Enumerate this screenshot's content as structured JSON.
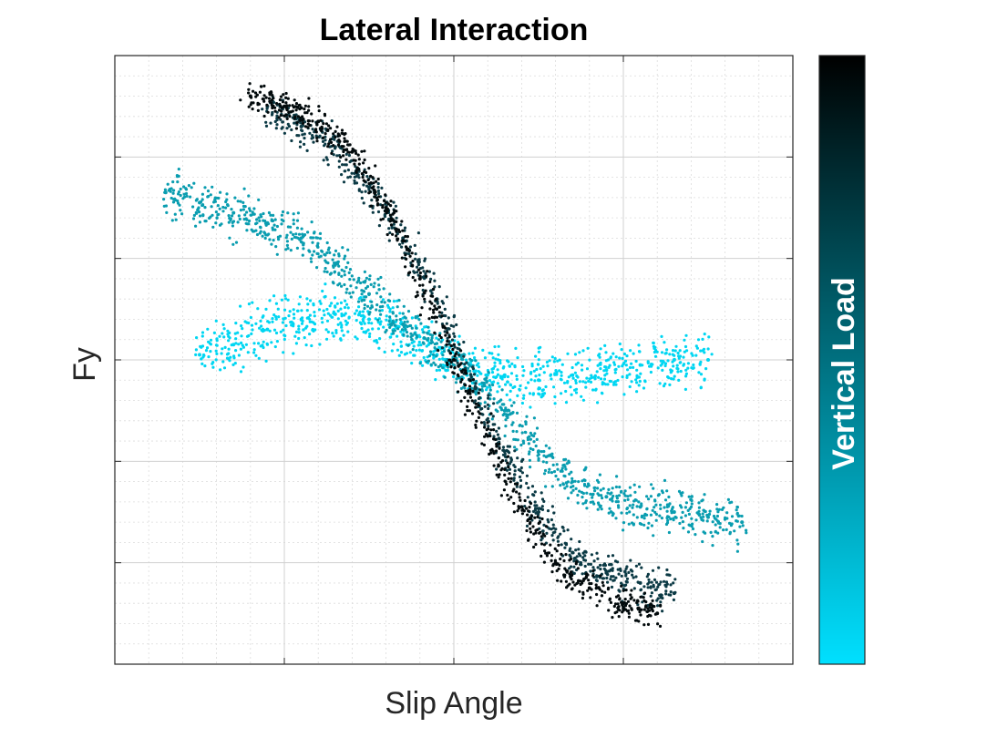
{
  "chart_data": {
    "type": "scatter",
    "title": "Lateral Interaction",
    "xlabel": "Slip Angle",
    "ylabel": "Fy",
    "xlim": [
      -10,
      10
    ],
    "ylim": [
      -3,
      3
    ],
    "x_major_ticks": [
      -5,
      0,
      5
    ],
    "y_major_ticks": [
      -2,
      -1,
      0,
      1,
      2
    ],
    "tick_labels_shown": false,
    "grid": true,
    "minor_grid": true,
    "legend": "none",
    "colorbar": {
      "label": "Vertical Load",
      "placement": "right",
      "color_low": "#00E0FF",
      "color_high": "#000000",
      "range": [
        0,
        1
      ],
      "tick_labels_shown": false
    },
    "series": [
      {
        "load_level": 0.1,
        "color": "#00D6F2",
        "x": [
          -7.5,
          -6.5,
          -5.5,
          -4.5,
          -3.5,
          -2.5,
          -1.5,
          -0.5,
          0.5,
          1.5,
          2.5,
          3.5,
          4.5,
          5.5,
          6.5,
          7.5
        ],
        "y": [
          0.05,
          0.15,
          0.3,
          0.4,
          0.45,
          0.4,
          0.25,
          0.05,
          -0.05,
          -0.15,
          -0.2,
          -0.15,
          -0.1,
          -0.05,
          0.0,
          0.0
        ]
      },
      {
        "load_level": 0.45,
        "color": "#0A9DB0",
        "x": [
          -8.5,
          -7.5,
          -6.5,
          -5.5,
          -4.5,
          -3.5,
          -2.5,
          -1.5,
          -0.5,
          0.5,
          1.5,
          2.5,
          3.5,
          4.5,
          5.5,
          6.5,
          7.5,
          8.5
        ],
        "y": [
          1.65,
          1.55,
          1.45,
          1.35,
          1.2,
          0.95,
          0.65,
          0.35,
          0.1,
          -0.15,
          -0.5,
          -0.9,
          -1.2,
          -1.35,
          -1.45,
          -1.5,
          -1.55,
          -1.6
        ]
      },
      {
        "load_level": 0.8,
        "color": "#0C3A45",
        "x": [
          -5.5,
          -4.5,
          -3.5,
          -2.5,
          -1.5,
          -0.5,
          0.5,
          1.5,
          2.5,
          3.5,
          4.5,
          5.5,
          6.5
        ],
        "y": [
          2.5,
          2.3,
          2.1,
          1.7,
          1.2,
          0.6,
          -0.2,
          -0.9,
          -1.5,
          -1.9,
          -2.1,
          -2.2,
          -2.3
        ]
      },
      {
        "load_level": 1.0,
        "color": "#020A0C",
        "x": [
          -6,
          -5,
          -4,
          -3,
          -2,
          -1,
          0,
          1,
          2,
          3,
          4,
          5,
          6
        ],
        "y": [
          2.6,
          2.5,
          2.35,
          2.05,
          1.5,
          0.8,
          0.0,
          -0.75,
          -1.45,
          -2.0,
          -2.25,
          -2.4,
          -2.5
        ]
      }
    ]
  }
}
